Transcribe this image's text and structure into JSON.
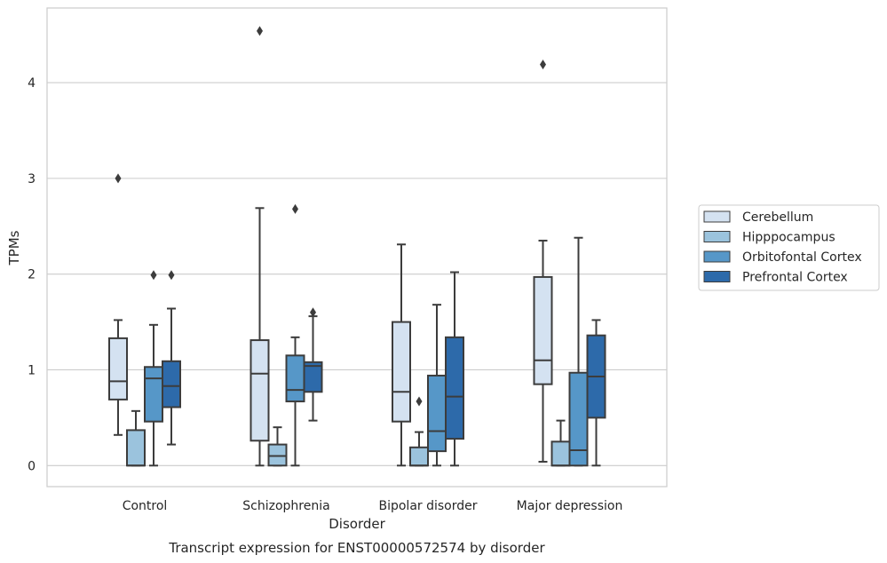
{
  "chart_data": {
    "type": "box",
    "title": "",
    "caption": "Transcript expression for ENST00000572574 by disorder",
    "xlabel": "Disorder",
    "ylabel": "TPMs",
    "ylim": [
      -0.22,
      4.78
    ],
    "yticks": [
      "0",
      "1",
      "2",
      "3",
      "4"
    ],
    "grid": "horizontal",
    "legend_position": "right",
    "categories": [
      "Control",
      "Schizophrenia",
      "Bipolar disorder",
      "Major depression"
    ],
    "series": [
      {
        "name": "Cerebellum",
        "color": "#d4e2f1",
        "boxes": [
          {
            "whisker_low": 0.32,
            "q1": 0.69,
            "median": 0.88,
            "q3": 1.33,
            "whisker_high": 1.52,
            "outliers": [
              3.0
            ]
          },
          {
            "whisker_low": 0.0,
            "q1": 0.26,
            "median": 0.96,
            "q3": 1.31,
            "whisker_high": 2.69,
            "outliers": [
              4.54
            ]
          },
          {
            "whisker_low": 0.0,
            "q1": 0.46,
            "median": 0.77,
            "q3": 1.5,
            "whisker_high": 2.31,
            "outliers": []
          },
          {
            "whisker_low": 0.04,
            "q1": 0.85,
            "median": 1.1,
            "q3": 1.97,
            "whisker_high": 2.35,
            "outliers": [
              4.19
            ]
          }
        ]
      },
      {
        "name": "Hipppocampus",
        "color": "#9bc3dd",
        "boxes": [
          {
            "whisker_low": 0.0,
            "q1": 0.0,
            "median": 0.0,
            "q3": 0.37,
            "whisker_high": 0.57,
            "outliers": []
          },
          {
            "whisker_low": 0.0,
            "q1": 0.0,
            "median": 0.1,
            "q3": 0.22,
            "whisker_high": 0.4,
            "outliers": []
          },
          {
            "whisker_low": 0.0,
            "q1": 0.0,
            "median": 0.0,
            "q3": 0.19,
            "whisker_high": 0.35,
            "outliers": [
              0.67
            ]
          },
          {
            "whisker_low": 0.0,
            "q1": 0.0,
            "median": 0.0,
            "q3": 0.25,
            "whisker_high": 0.47,
            "outliers": []
          }
        ]
      },
      {
        "name": "Orbitofontal Cortex",
        "color": "#5697c8",
        "boxes": [
          {
            "whisker_low": 0.0,
            "q1": 0.46,
            "median": 0.91,
            "q3": 1.03,
            "whisker_high": 1.47,
            "outliers": [
              1.99
            ]
          },
          {
            "whisker_low": 0.0,
            "q1": 0.67,
            "median": 0.79,
            "q3": 1.15,
            "whisker_high": 1.34,
            "outliers": [
              2.68
            ]
          },
          {
            "whisker_low": 0.0,
            "q1": 0.15,
            "median": 0.36,
            "q3": 0.94,
            "whisker_high": 1.68,
            "outliers": []
          },
          {
            "whisker_low": 0.0,
            "q1": 0.0,
            "median": 0.16,
            "q3": 0.97,
            "whisker_high": 2.38,
            "outliers": []
          }
        ]
      },
      {
        "name": "Prefrontal Cortex",
        "color": "#2d6aaa",
        "boxes": [
          {
            "whisker_low": 0.22,
            "q1": 0.61,
            "median": 0.83,
            "q3": 1.09,
            "whisker_high": 1.64,
            "outliers": [
              1.99
            ]
          },
          {
            "whisker_low": 0.47,
            "q1": 0.77,
            "median": 1.04,
            "q3": 1.08,
            "whisker_high": 1.56,
            "outliers": [
              1.6
            ]
          },
          {
            "whisker_low": 0.0,
            "q1": 0.28,
            "median": 0.72,
            "q3": 1.34,
            "whisker_high": 2.02,
            "outliers": []
          },
          {
            "whisker_low": 0.0,
            "q1": 0.5,
            "median": 0.93,
            "q3": 1.36,
            "whisker_high": 1.52,
            "outliers": []
          }
        ]
      }
    ]
  }
}
